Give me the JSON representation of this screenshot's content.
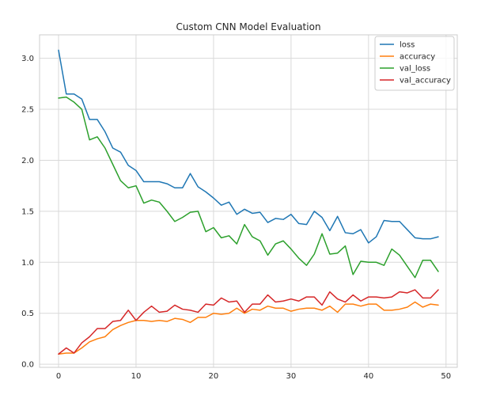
{
  "chart_data": {
    "type": "line",
    "title": "Custom CNN Model Evaluation",
    "xlabel": "",
    "ylabel": "",
    "xlim": [
      -2.45,
      51.45
    ],
    "ylim": [
      -0.03,
      3.23
    ],
    "x_ticks": [
      0,
      10,
      20,
      30,
      40,
      50
    ],
    "y_ticks": [
      0.0,
      0.5,
      1.0,
      1.5,
      2.0,
      2.5,
      3.0
    ],
    "x_tick_labels": [
      "0",
      "10",
      "20",
      "30",
      "40",
      "50"
    ],
    "y_tick_labels": [
      "0.0",
      "0.5",
      "1.0",
      "1.5",
      "2.0",
      "2.5",
      "3.0"
    ],
    "grid": true,
    "legend_position": "top-right",
    "x": [
      0,
      1,
      2,
      3,
      4,
      5,
      6,
      7,
      8,
      9,
      10,
      11,
      12,
      13,
      14,
      15,
      16,
      17,
      18,
      19,
      20,
      21,
      22,
      23,
      24,
      25,
      26,
      27,
      28,
      29,
      30,
      31,
      32,
      33,
      34,
      35,
      36,
      37,
      38,
      39,
      40,
      41,
      42,
      43,
      44,
      45,
      46,
      47,
      48,
      49
    ],
    "series": [
      {
        "name": "loss",
        "color": "#1f77b4",
        "values": [
          3.08,
          2.65,
          2.65,
          2.6,
          2.4,
          2.4,
          2.28,
          2.12,
          2.08,
          1.95,
          1.9,
          1.79,
          1.79,
          1.79,
          1.77,
          1.73,
          1.73,
          1.87,
          1.74,
          1.69,
          1.63,
          1.56,
          1.59,
          1.47,
          1.52,
          1.48,
          1.49,
          1.39,
          1.43,
          1.42,
          1.47,
          1.38,
          1.37,
          1.5,
          1.44,
          1.31,
          1.45,
          1.29,
          1.28,
          1.32,
          1.19,
          1.25,
          1.41,
          1.4,
          1.4,
          1.32,
          1.24,
          1.23,
          1.23,
          1.25
        ]
      },
      {
        "name": "accuracy",
        "color": "#ff7f0e",
        "values": [
          0.1,
          0.11,
          0.11,
          0.16,
          0.22,
          0.25,
          0.27,
          0.34,
          0.38,
          0.41,
          0.43,
          0.43,
          0.42,
          0.43,
          0.42,
          0.45,
          0.44,
          0.41,
          0.46,
          0.46,
          0.5,
          0.49,
          0.5,
          0.55,
          0.5,
          0.54,
          0.53,
          0.57,
          0.55,
          0.55,
          0.52,
          0.54,
          0.55,
          0.55,
          0.53,
          0.57,
          0.51,
          0.59,
          0.59,
          0.57,
          0.59,
          0.59,
          0.53,
          0.53,
          0.54,
          0.56,
          0.61,
          0.56,
          0.59,
          0.58
        ]
      },
      {
        "name": "val_loss",
        "color": "#2ca02c",
        "values": [
          2.61,
          2.62,
          2.57,
          2.5,
          2.2,
          2.23,
          2.12,
          1.96,
          1.8,
          1.73,
          1.75,
          1.58,
          1.61,
          1.59,
          1.5,
          1.4,
          1.44,
          1.49,
          1.5,
          1.3,
          1.34,
          1.24,
          1.26,
          1.18,
          1.37,
          1.25,
          1.21,
          1.07,
          1.18,
          1.21,
          1.13,
          1.04,
          0.97,
          1.08,
          1.28,
          1.08,
          1.09,
          1.16,
          0.88,
          1.01,
          1.0,
          1.0,
          0.97,
          1.13,
          1.07,
          0.96,
          0.85,
          1.02,
          1.02,
          0.91
        ]
      },
      {
        "name": "val_accuracy",
        "color": "#d62728",
        "values": [
          0.1,
          0.16,
          0.11,
          0.21,
          0.27,
          0.35,
          0.35,
          0.42,
          0.43,
          0.53,
          0.43,
          0.51,
          0.57,
          0.51,
          0.52,
          0.58,
          0.54,
          0.53,
          0.51,
          0.59,
          0.58,
          0.65,
          0.61,
          0.62,
          0.51,
          0.59,
          0.59,
          0.68,
          0.61,
          0.62,
          0.64,
          0.62,
          0.66,
          0.66,
          0.58,
          0.71,
          0.64,
          0.61,
          0.68,
          0.62,
          0.66,
          0.66,
          0.65,
          0.66,
          0.71,
          0.7,
          0.73,
          0.65,
          0.65,
          0.73
        ]
      }
    ]
  },
  "colors": {
    "grid": "#d9d9d9",
    "frame": "#cccccc",
    "text": "#262626",
    "background": "#ffffff"
  }
}
